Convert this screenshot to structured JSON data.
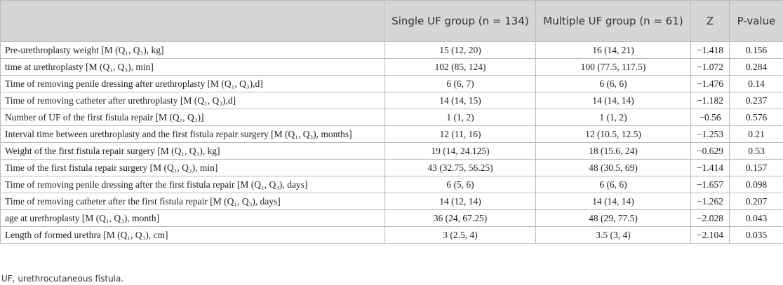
{
  "table": {
    "header": [
      "",
      "Single UF group (n = 134)",
      "Multiple UF group (n = 61)",
      "Z",
      "P-value"
    ],
    "rows": [
      [
        "Pre-urethroplasty weight [M (Q₁, Q₃), kg]",
        "15 (12, 20)",
        "16 (14, 21)",
        "−1.418",
        "0.156"
      ],
      [
        "time at urethroplasty [M (Q₁, Q₃), min]",
        "102 (85, 124)",
        "100 (77.5, 117.5)",
        "−1.072",
        "0.284"
      ],
      [
        "Time of removing penile dressing after urethroplasty [M (Q₁, Q₃),d]",
        "6 (6, 7)",
        "6 (6, 6)",
        "−1.476",
        "0.14"
      ],
      [
        "Time of removing catheter after urethroplasty [M (Q₁, Q₃),d]",
        "14 (14, 15)",
        "14 (14, 14)",
        "−1.182",
        "0.237"
      ],
      [
        "Number of UF of the first fistula repair [M (Q₁, Q₃)]",
        "1 (1, 2)",
        "1 (1, 2)",
        "−0.56",
        "0.576"
      ],
      [
        "Interval time between urethroplasty and the first fistula repair surgery [M (Q₁, Q₃), months]",
        "12 (11, 16)",
        "12 (10.5, 12.5)",
        "−1.253",
        "0.21"
      ],
      [
        "Weight of the first fistula repair surgery [M (Q₁, Q₃), kg]",
        "19 (14, 24.125)",
        "18 (15.6, 24)",
        "−0.629",
        "0.53"
      ],
      [
        "Time of the first fistula repair surgery [M (Q₁, Q₃), min]",
        "43 (32.75, 56.25)",
        "48 (30.5, 69)",
        "−1.414",
        "0.157"
      ],
      [
        "Time of removing penile dressing after the first fistula repair [M (Q₁, Q₃), days]",
        "6 (5, 6)",
        "6 (6, 6)",
        "−1.657",
        "0.098"
      ],
      [
        "Time of removing catheter after the first fistula repair [M (Q₁, Q₃), days]",
        "14 (12, 14)",
        "14 (14, 14)",
        "−1.262",
        "0.207"
      ],
      [
        "age at urethroplasty [M (Q₁, Q₃), month]",
        "36 (24, 67.25)",
        "48 (29, 77.5)",
        "−2.028",
        "0.043"
      ],
      [
        "Length of formed urethra [M (Q₁, Q₃), cm]",
        "3 (2.5, 4)",
        "3.5 (3, 4)",
        "−2.104",
        "0.035"
      ]
    ]
  },
  "footnote": "UF, urethrocutaneous fistula."
}
